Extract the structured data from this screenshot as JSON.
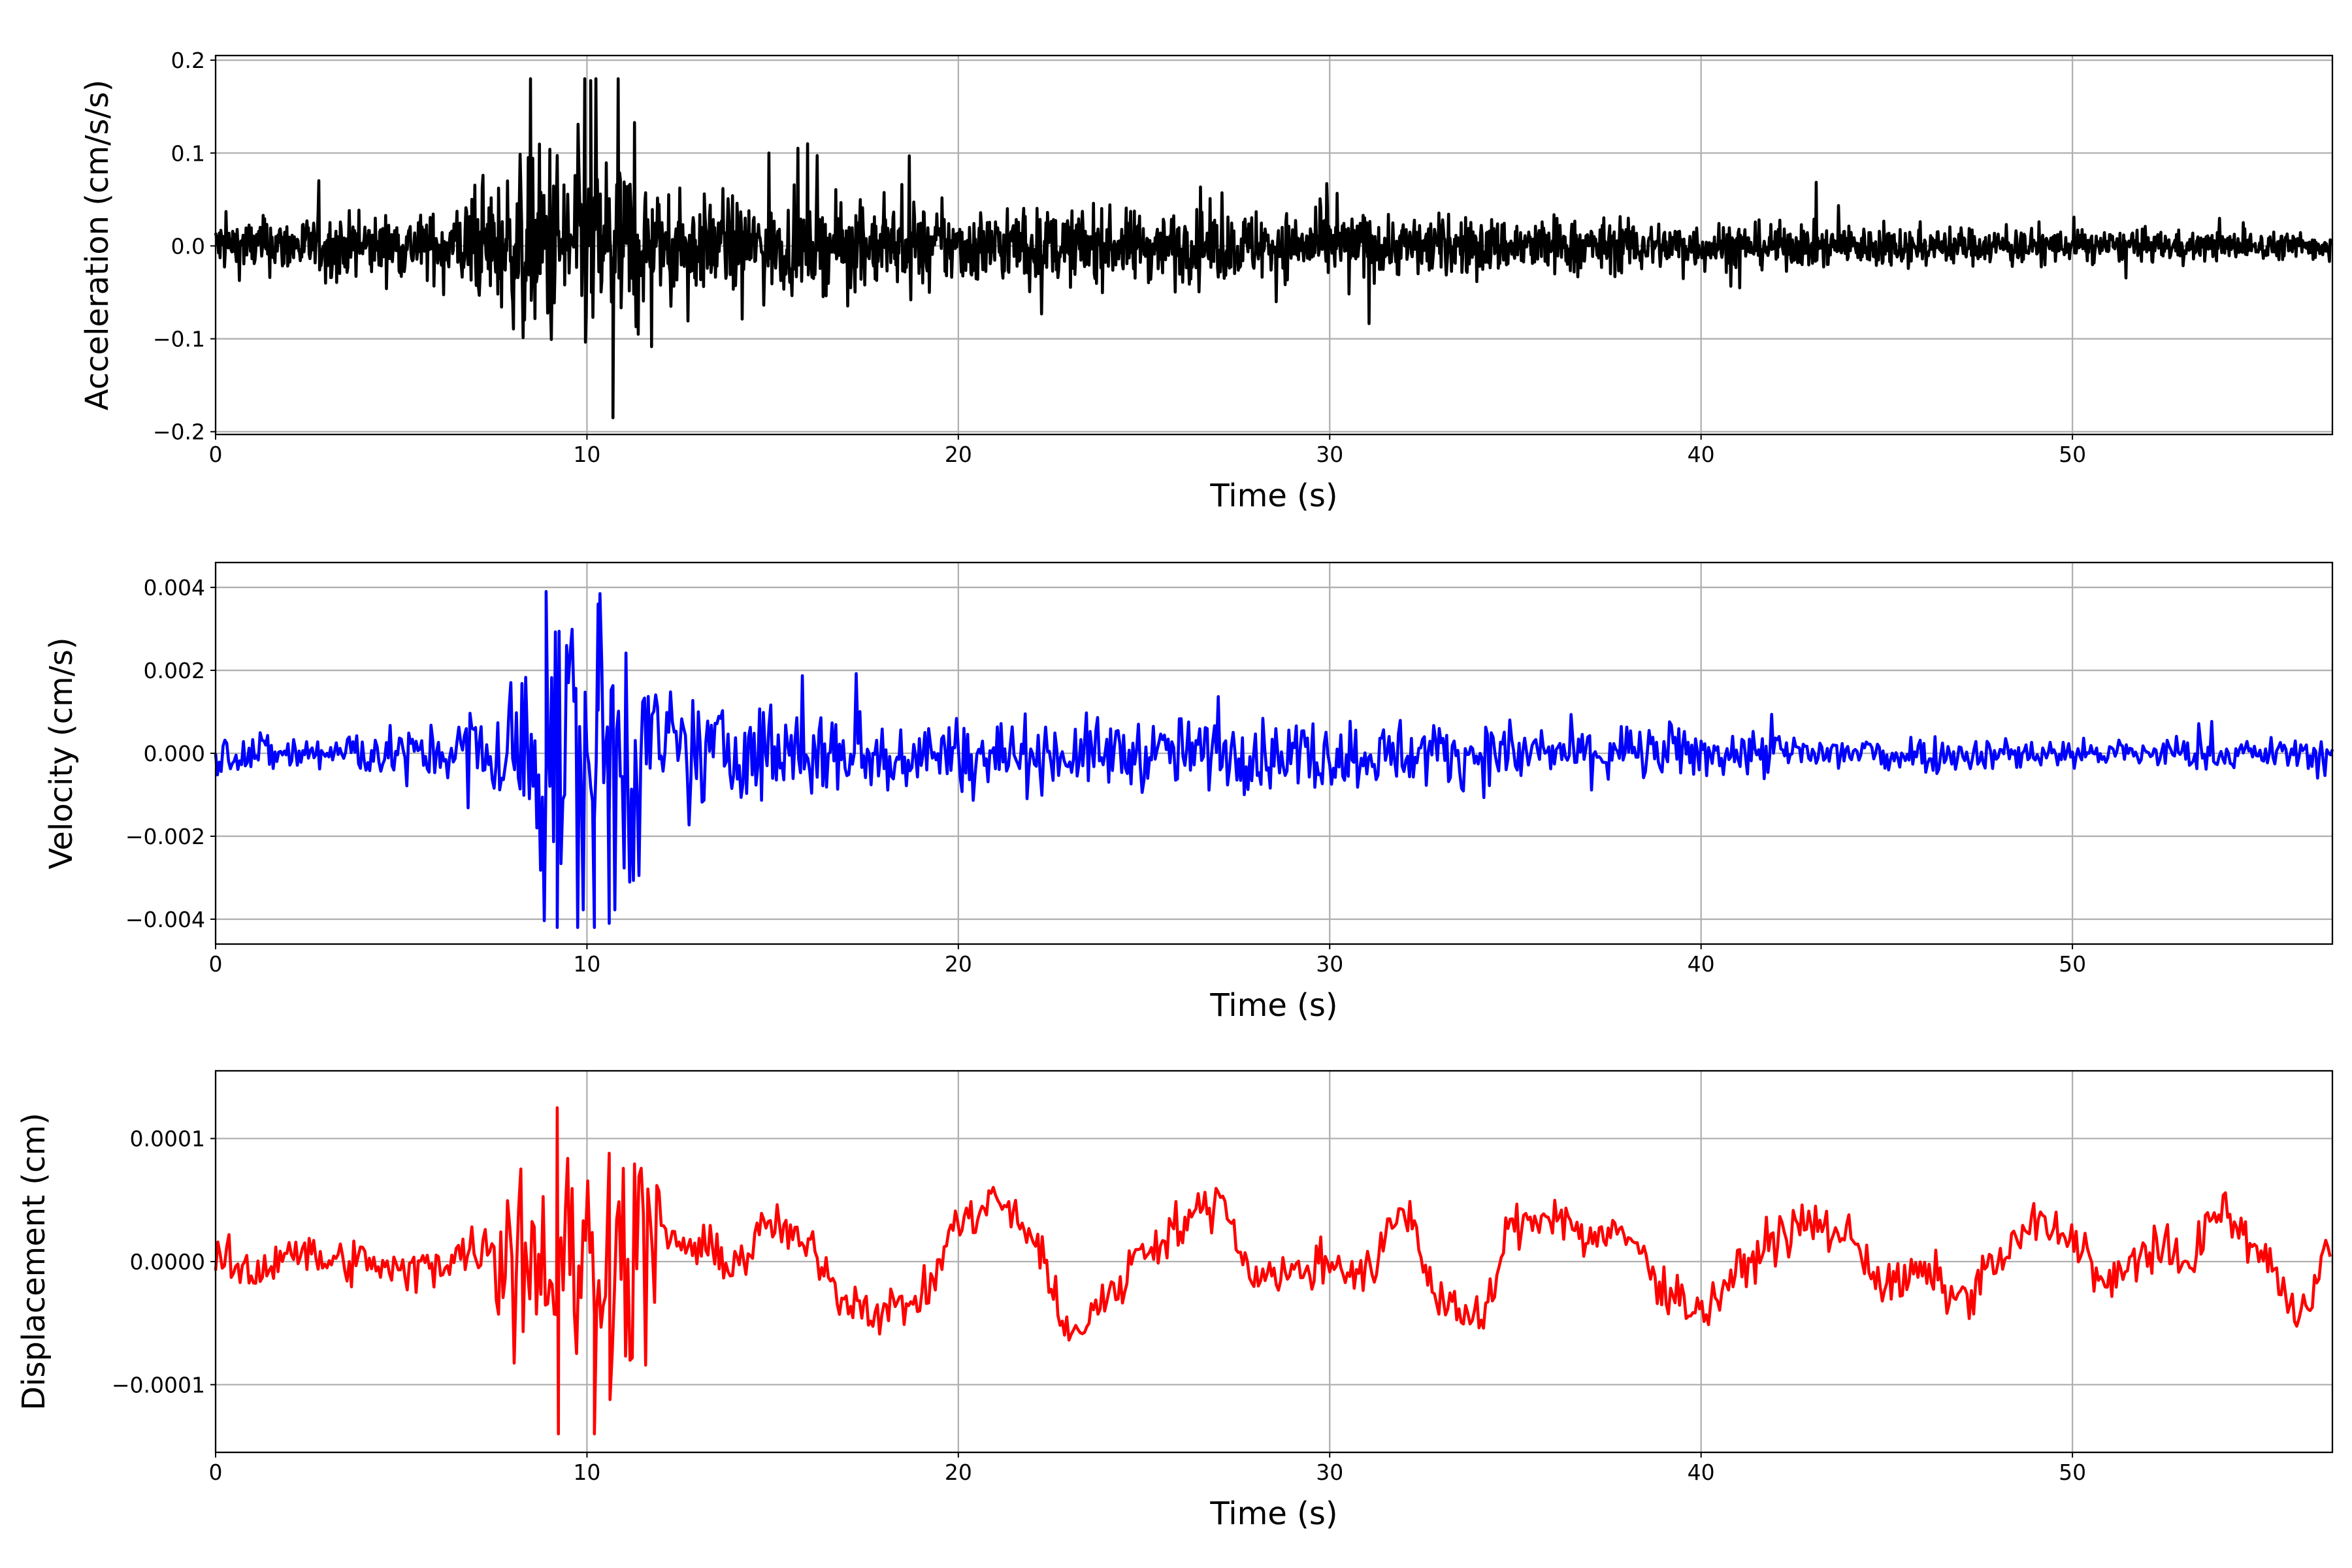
{
  "chart_data": [
    {
      "type": "line",
      "title": "",
      "xlabel": "Time (s)",
      "ylabel": "Acceleration (cm/s/s)",
      "xlim": [
        0,
        57
      ],
      "ylim": [
        -0.203,
        0.205
      ],
      "xticks": [
        0,
        10,
        20,
        30,
        40,
        50
      ],
      "xtick_labels": [
        "0",
        "10",
        "20",
        "30",
        "40",
        "50"
      ],
      "yticks": [
        -0.2,
        -0.1,
        0.0,
        0.1,
        0.2
      ],
      "ytick_labels": [
        "−0.2",
        "−0.1",
        "0.0",
        "0.1",
        "0.2"
      ],
      "grid": true,
      "color": "#000000",
      "series": [
        {
          "name": "acceleration",
          "peak_max": 0.178,
          "peak_max_t": 10.1,
          "peak_min": -0.185,
          "peak_min_t": 10.7,
          "envelope_t": [
            0,
            6,
            8,
            9,
            11,
            12,
            20,
            30,
            40,
            50,
            57
          ],
          "envelope": [
            0.025,
            0.03,
            0.07,
            0.1,
            0.09,
            0.045,
            0.035,
            0.03,
            0.022,
            0.015,
            0.012
          ]
        }
      ]
    },
    {
      "type": "line",
      "title": "",
      "xlabel": "Time (s)",
      "ylabel": "Velocity (cm/s)",
      "xlim": [
        0,
        57
      ],
      "ylim": [
        -0.0046,
        0.0046
      ],
      "xticks": [
        0,
        10,
        20,
        30,
        40,
        50
      ],
      "xtick_labels": [
        "0",
        "10",
        "20",
        "30",
        "40",
        "50"
      ],
      "yticks": [
        -0.004,
        -0.002,
        0.0,
        0.002,
        0.004
      ],
      "ytick_labels": [
        "−0.004",
        "−0.002",
        "0.000",
        "0.002",
        "0.004"
      ],
      "grid": true,
      "color": "#0000ff",
      "series": [
        {
          "name": "velocity",
          "peak_max": 0.0039,
          "peak_max_t": 8.9,
          "peak_min": -0.0042,
          "peak_min_t": 9.2,
          "envelope_t": [
            0,
            6,
            8,
            9,
            11,
            12,
            20,
            30,
            40,
            50,
            57
          ],
          "envelope": [
            0.0004,
            0.0005,
            0.0016,
            0.0032,
            0.003,
            0.0012,
            0.0007,
            0.0007,
            0.0005,
            0.0003,
            0.0003
          ]
        }
      ]
    },
    {
      "type": "line",
      "title": "",
      "xlabel": "Time (s)",
      "ylabel": "Displacement (cm)",
      "xlim": [
        0,
        57
      ],
      "ylim": [
        -0.000155,
        0.000155
      ],
      "xticks": [
        0,
        10,
        20,
        30,
        40,
        50
      ],
      "xtick_labels": [
        "0",
        "10",
        "20",
        "30",
        "40",
        "50"
      ],
      "yticks": [
        -0.0001,
        0.0,
        0.0001
      ],
      "ytick_labels": [
        "−0.0001",
        "0.0000",
        "0.0001"
      ],
      "grid": true,
      "color": "#ff0000",
      "series": [
        {
          "name": "displacement",
          "peak_max": 0.000125,
          "peak_max_t": 9.2,
          "peak_min": -0.00014,
          "peak_min_t": 10.2,
          "trend_t_step": 1,
          "trend": [
            0,
            -1e-05,
            1e-05,
            0,
            0,
            -1e-05,
            0,
            1e-05,
            2e-05,
            0,
            0,
            0,
            2e-05,
            1e-05,
            0,
            3e-05,
            1e-05,
            -3e-05,
            -4e-05,
            -3e-05,
            3e-05,
            5e-05,
            2e-05,
            -6e-05,
            -3e-05,
            1e-05,
            3e-05,
            5e-05,
            -1e-05,
            -1e-05,
            0,
            -1e-05,
            4e-05,
            -3e-05,
            -5e-05,
            3e-05,
            4e-05,
            2e-05,
            2e-05,
            -2e-05,
            -4e-05,
            -1e-05,
            2e-05,
            3e-05,
            2e-05,
            -2e-05,
            -1e-05,
            -3e-05,
            0,
            3e-05,
            2e-05,
            -2e-05,
            1e-05,
            0,
            4e-05,
            1e-05,
            -4e-05,
            1e-05
          ]
        }
      ]
    }
  ]
}
